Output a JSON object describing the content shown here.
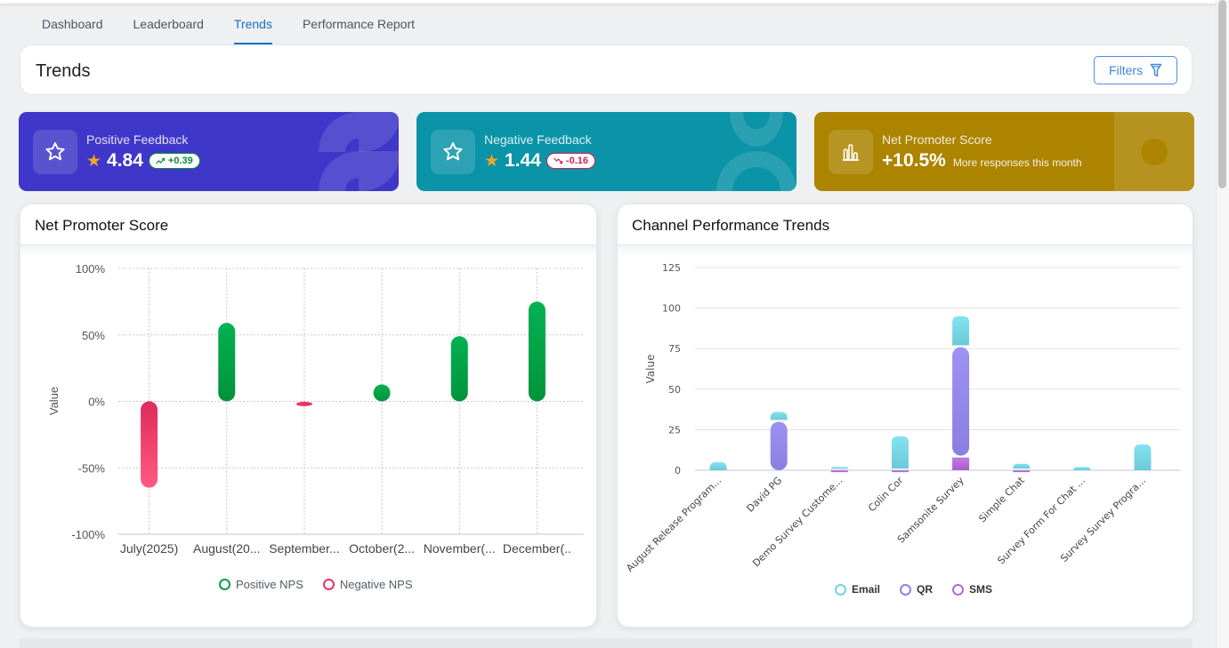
{
  "tabs": [
    {
      "label": "Dashboard",
      "active": false
    },
    {
      "label": "Leaderboard",
      "active": false
    },
    {
      "label": "Trends",
      "active": true
    },
    {
      "label": "Performance Report",
      "active": false
    }
  ],
  "header": {
    "title": "Trends",
    "filters_label": "Filters",
    "filters_icon": "filter-icon"
  },
  "stats": [
    {
      "label": "Positive Feedback",
      "value": "4.84",
      "change": "+0.39",
      "direction": "up",
      "icon": "star-icon",
      "color": "#3f37c9"
    },
    {
      "label": "Negative Feedback",
      "value": "1.44",
      "change": "-0.16",
      "direction": "down",
      "icon": "star-icon",
      "color": "#0b93a8"
    },
    {
      "label": "Net Promoter Score",
      "value": "+10.5%",
      "subtitle": "More responses this month",
      "icon": "bar-chart-icon",
      "color": "#ac8400"
    }
  ],
  "chart_data": [
    {
      "type": "bar",
      "title": "Net Promoter Score",
      "xlabel": "",
      "ylabel": "Value",
      "ylim": [
        -100,
        100
      ],
      "yticks": [
        "100%",
        "50%",
        "0%",
        "-50%",
        "-100%"
      ],
      "ytick_values": [
        100,
        50,
        0,
        -50,
        -100
      ],
      "categories": [
        "July(2025)",
        "August(20...",
        "September...",
        "October(2...",
        "November(...",
        "December(.."
      ],
      "series": [
        {
          "name": "Positive NPS",
          "color": "#0a9b43",
          "values": [
            0,
            59,
            0,
            12,
            49,
            75
          ]
        },
        {
          "name": "Negative NPS",
          "color": "#e8345f",
          "values": [
            -65,
            0,
            -2,
            0,
            0,
            0
          ]
        }
      ],
      "grid": true,
      "legend": "bottom"
    },
    {
      "type": "bar",
      "stacked": true,
      "title": "Channel Performance Trends",
      "xlabel": "",
      "ylabel": "Value",
      "ylim": [
        0,
        125
      ],
      "yticks": [
        "125",
        "100",
        "75",
        "50",
        "25",
        "0"
      ],
      "ytick_values": [
        125,
        100,
        75,
        50,
        25,
        0
      ],
      "categories": [
        "August Release Program...",
        "David PG",
        "Demo Survey Custome...",
        "Colin Cor",
        "Samsonite Survey",
        "Simple Chat",
        "Survey Form For Chat ...",
        "Survey Survey Progra..."
      ],
      "series": [
        {
          "name": "SMS",
          "color": "#b46ad8",
          "values": [
            0,
            0,
            1,
            1,
            9,
            1,
            0,
            0
          ]
        },
        {
          "name": "QR",
          "color": "#8f82e6",
          "values": [
            0,
            31,
            0,
            0,
            68,
            0,
            0,
            0
          ]
        },
        {
          "name": "Email",
          "color": "#72d5e4",
          "values": [
            5,
            5,
            1,
            20,
            18,
            3,
            2,
            16
          ]
        }
      ],
      "legend_order": [
        "Email",
        "QR",
        "SMS"
      ],
      "grid": true,
      "legend": "bottom"
    }
  ]
}
